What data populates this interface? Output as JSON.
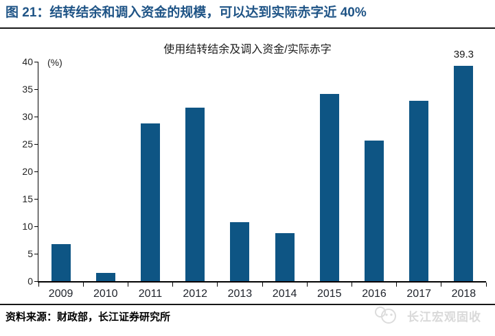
{
  "header": {
    "title": "图 21：结转结余和调入资金的规模，可以达到实际赤字近 40%"
  },
  "chart_data": {
    "type": "bar",
    "title": "使用结转结余及调入资金/实际赤字",
    "unit_label": "(%)",
    "categories": [
      "2009",
      "2010",
      "2011",
      "2012",
      "2013",
      "2014",
      "2015",
      "2016",
      "2017",
      "2018"
    ],
    "values": [
      6.7,
      1.5,
      28.8,
      31.6,
      10.8,
      8.7,
      34.1,
      25.6,
      32.9,
      39.3
    ],
    "ylim": [
      0,
      40
    ],
    "yticks": [
      0,
      5,
      10,
      15,
      20,
      25,
      30,
      35,
      40
    ],
    "grid": false,
    "legend": null,
    "bar_color": "#0e5584",
    "bar_label": {
      "category": "2018",
      "text": "39.3"
    }
  },
  "footer": {
    "source": "资料来源：财政部，长江证券研究所",
    "brand": "长江宏观固收"
  },
  "colors": {
    "header_title": "#1f5486",
    "bar": "#0e5584",
    "axis": "#000000",
    "watermark": "#d9d9d9"
  }
}
